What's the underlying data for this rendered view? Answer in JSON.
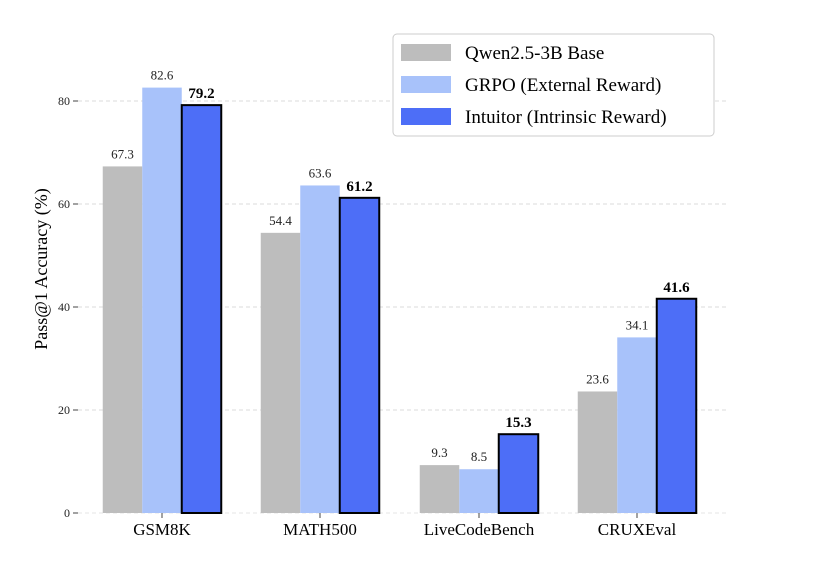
{
  "chart_data": {
    "type": "bar",
    "title": "",
    "xlabel": "",
    "ylabel": "Pass@1 Accuracy (%)",
    "ylim": [
      0,
      90
    ],
    "yticks": [
      0,
      20,
      40,
      60,
      80
    ],
    "grid": "y-dashed",
    "legend_position": "top-right",
    "categories": [
      "GSM8K",
      "MATH500",
      "LiveCodeBench",
      "CRUXEval"
    ],
    "series": [
      {
        "name": "Qwen2.5-3B Base",
        "color": "#bdbdbd",
        "bold_labels": false,
        "values": [
          67.3,
          54.4,
          9.3,
          23.6
        ],
        "labels": [
          "67.3",
          "54.4",
          "9.3",
          "23.6"
        ]
      },
      {
        "name": "GRPO (External Reward)",
        "color": "#a8c2fa",
        "bold_labels": false,
        "values": [
          82.6,
          63.6,
          8.5,
          34.1
        ],
        "labels": [
          "82.6",
          "63.6",
          "8.5",
          "34.1"
        ]
      },
      {
        "name": "Intuitor (Intrinsic Reward)",
        "color": "#4d6ef7",
        "bold_labels": true,
        "values": [
          79.2,
          61.2,
          15.3,
          41.6
        ],
        "labels": [
          "79.2",
          "61.2",
          "15.3",
          "41.6"
        ]
      }
    ]
  }
}
